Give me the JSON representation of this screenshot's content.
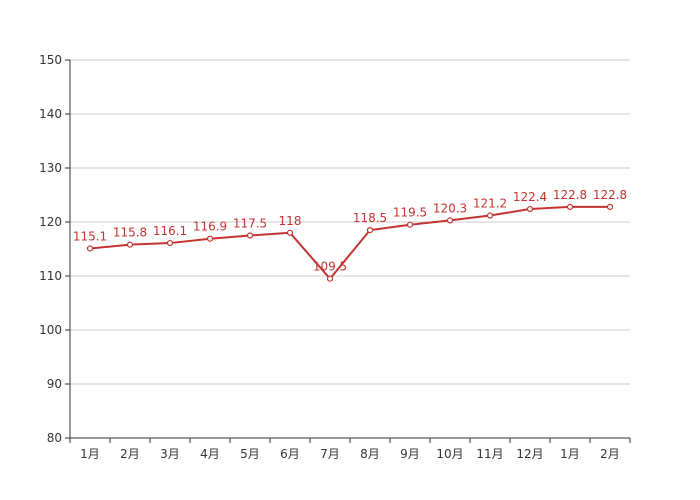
{
  "chart_data": {
    "type": "line",
    "categories": [
      "1月",
      "2月",
      "3月",
      "4月",
      "5月",
      "6月",
      "7月",
      "8月",
      "9月",
      "10月",
      "11月",
      "12月",
      "1月",
      "2月"
    ],
    "series": [
      {
        "values": [
          115.1,
          115.8,
          116.1,
          116.9,
          117.5,
          118,
          109.5,
          118.5,
          119.5,
          120.3,
          121.2,
          122.4,
          122.8,
          122.8
        ],
        "color": "#c23531"
      }
    ],
    "ylim": [
      80,
      150
    ],
    "yticks": [
      80,
      90,
      100,
      110,
      120,
      130,
      140,
      150
    ],
    "title": "",
    "xlabel": "",
    "ylabel": "",
    "grid": true,
    "data_labels": true,
    "point_labels": [
      "115.1",
      "115.8",
      "116.1",
      "116.9",
      "117.5",
      "118",
      "109.5",
      "118.5",
      "119.5",
      "120.3",
      "121.2",
      "122.4",
      "122.8",
      "122.8"
    ]
  }
}
